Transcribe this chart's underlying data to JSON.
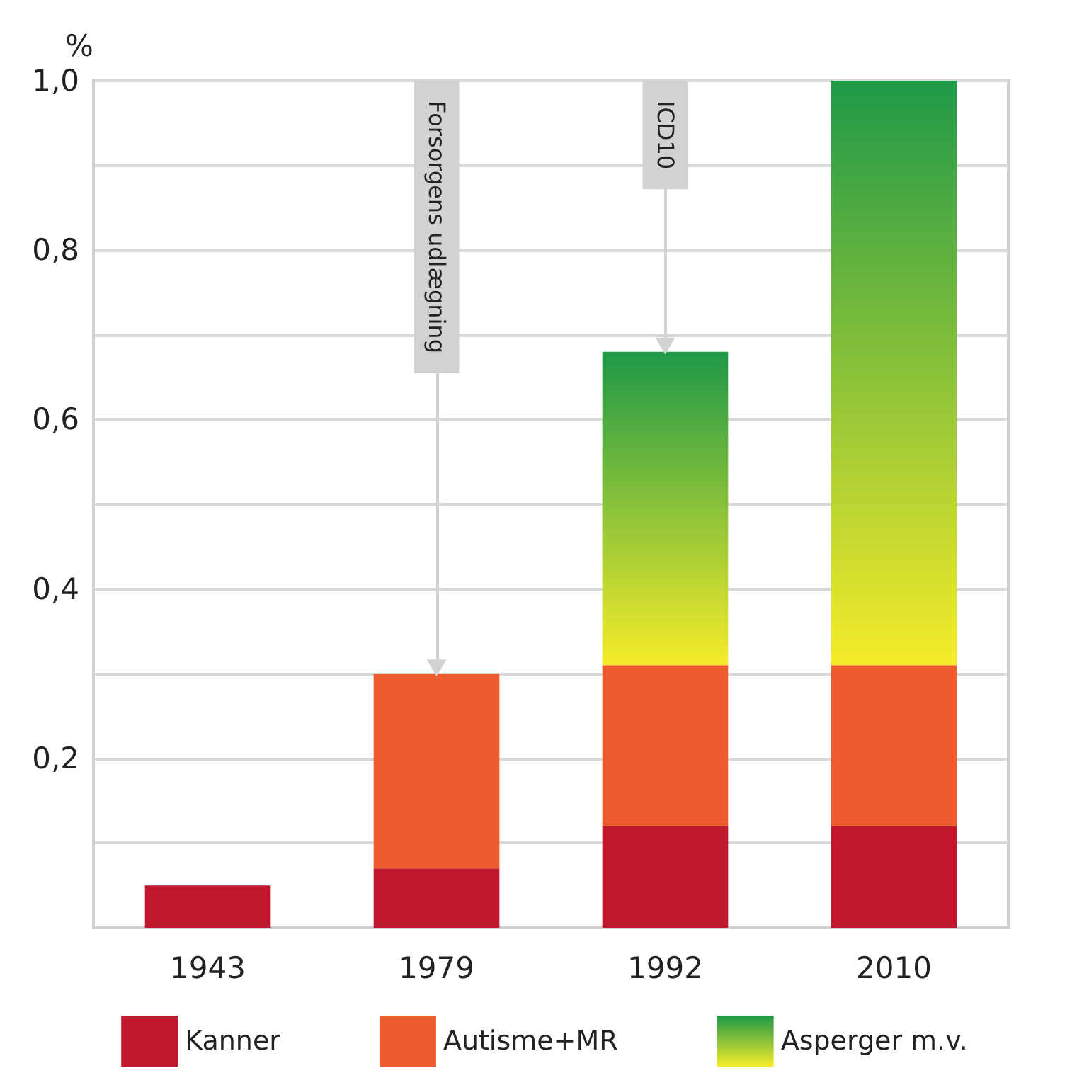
{
  "chart_data": {
    "type": "bar",
    "stacked": true,
    "ylabel": "%",
    "categories": [
      "1943",
      "1979",
      "1992",
      "2010"
    ],
    "series": [
      {
        "name": "Kanner",
        "color": "#c0172f",
        "values": [
          0.05,
          0.07,
          0.12,
          0.12
        ]
      },
      {
        "name": "Autisme+MR",
        "color": "#ee5c2e",
        "values": [
          null,
          0.23,
          0.19,
          0.19
        ]
      },
      {
        "name": "Asperger m.v.",
        "color": "#1f9948",
        "values": [
          null,
          null,
          0.37,
          0.69
        ]
      }
    ],
    "ylim": [
      0,
      1
    ],
    "yticks": [
      {
        "value": 0,
        "label": null
      },
      {
        "value": 0.1,
        "label": null
      },
      {
        "value": 0.2,
        "label": "0,2"
      },
      {
        "value": 0.3,
        "label": null
      },
      {
        "value": 0.4,
        "label": "0,4"
      },
      {
        "value": 0.5,
        "label": null
      },
      {
        "value": 0.6,
        "label": "0,6"
      },
      {
        "value": 0.7,
        "label": null
      },
      {
        "value": 0.8,
        "label": "0,8"
      },
      {
        "value": 0.9,
        "label": null
      },
      {
        "value": 1.0,
        "label": "1,0"
      }
    ],
    "grid": "y",
    "legend": "bottom",
    "annotations": [
      {
        "text": "Forsorgens udlægning",
        "x": "1979",
        "y": 0.3
      },
      {
        "text": "ICD10",
        "x": "1992",
        "y": 0.68
      }
    ]
  }
}
